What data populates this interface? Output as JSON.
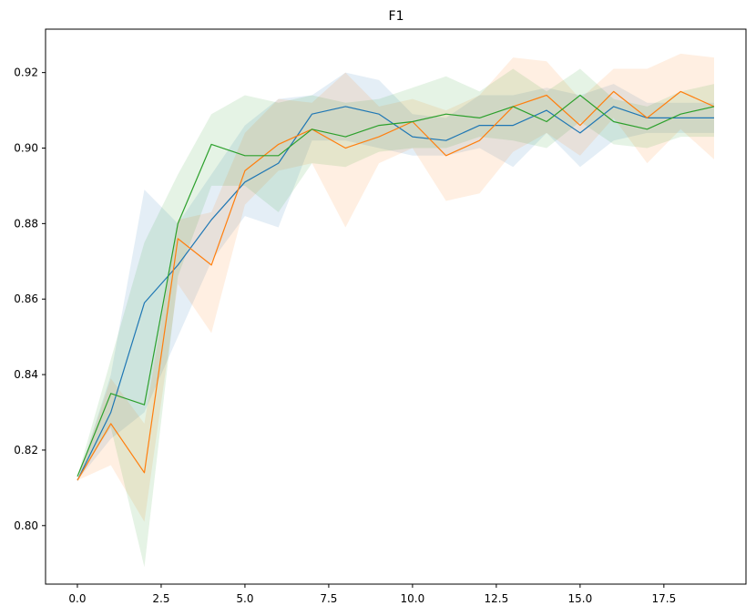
{
  "chart_data": {
    "type": "line",
    "title": "F1",
    "xlabel": "",
    "ylabel": "",
    "xlim": [
      -0.95,
      19.95
    ],
    "ylim": [
      0.7845,
      0.9315
    ],
    "grid": false,
    "legend": "none",
    "xticks": [
      0.0,
      2.5,
      5.0,
      7.5,
      10.0,
      12.5,
      15.0,
      17.5
    ],
    "xtick_labels": [
      "0.0",
      "2.5",
      "5.0",
      "7.5",
      "10.0",
      "12.5",
      "15.0",
      "17.5"
    ],
    "yticks": [
      0.8,
      0.82,
      0.84,
      0.86,
      0.88,
      0.9,
      0.92
    ],
    "ytick_labels": [
      "0.80",
      "0.82",
      "0.84",
      "0.86",
      "0.88",
      "0.90",
      "0.92"
    ],
    "x": [
      0,
      1,
      2,
      3,
      4,
      5,
      6,
      7,
      8,
      9,
      10,
      11,
      12,
      13,
      14,
      15,
      16,
      17,
      18,
      19
    ],
    "series": [
      {
        "color": "#1f77b4",
        "values": [
          0.812,
          0.83,
          0.859,
          0.869,
          0.881,
          0.891,
          0.896,
          0.909,
          0.911,
          0.909,
          0.903,
          0.902,
          0.906,
          0.906,
          0.91,
          0.904,
          0.911,
          0.908,
          0.908,
          0.908
        ],
        "lower": [
          0.812,
          0.823,
          0.83,
          0.85,
          0.87,
          0.882,
          0.879,
          0.902,
          0.902,
          0.9,
          0.898,
          0.898,
          0.9,
          0.895,
          0.904,
          0.895,
          0.902,
          0.904,
          0.904,
          0.904
        ],
        "upper": [
          0.812,
          0.84,
          0.889,
          0.88,
          0.893,
          0.906,
          0.913,
          0.914,
          0.92,
          0.918,
          0.909,
          0.908,
          0.914,
          0.914,
          0.916,
          0.914,
          0.917,
          0.912,
          0.912,
          0.912
        ]
      },
      {
        "color": "#ff7f0e",
        "values": [
          0.812,
          0.827,
          0.814,
          0.876,
          0.869,
          0.894,
          0.901,
          0.905,
          0.9,
          0.903,
          0.907,
          0.898,
          0.902,
          0.911,
          0.914,
          0.906,
          0.915,
          0.908,
          0.915,
          0.911
        ],
        "lower": [
          0.812,
          0.816,
          0.801,
          0.864,
          0.851,
          0.885,
          0.894,
          0.896,
          0.879,
          0.896,
          0.9,
          0.886,
          0.888,
          0.899,
          0.904,
          0.898,
          0.908,
          0.896,
          0.905,
          0.897
        ],
        "upper": [
          0.812,
          0.839,
          0.827,
          0.881,
          0.883,
          0.904,
          0.913,
          0.912,
          0.92,
          0.911,
          0.913,
          0.91,
          0.914,
          0.924,
          0.923,
          0.913,
          0.921,
          0.921,
          0.925,
          0.924
        ]
      },
      {
        "color": "#2ca02c",
        "values": [
          0.813,
          0.835,
          0.832,
          0.88,
          0.901,
          0.898,
          0.898,
          0.905,
          0.903,
          0.906,
          0.907,
          0.909,
          0.908,
          0.911,
          0.907,
          0.914,
          0.907,
          0.905,
          0.909,
          0.911
        ],
        "lower": [
          0.813,
          0.826,
          0.789,
          0.866,
          0.89,
          0.89,
          0.883,
          0.896,
          0.895,
          0.899,
          0.9,
          0.9,
          0.903,
          0.902,
          0.9,
          0.907,
          0.901,
          0.9,
          0.903,
          0.903
        ],
        "upper": [
          0.813,
          0.844,
          0.875,
          0.893,
          0.909,
          0.914,
          0.912,
          0.914,
          0.912,
          0.913,
          0.916,
          0.919,
          0.915,
          0.921,
          0.915,
          0.921,
          0.913,
          0.911,
          0.915,
          0.917
        ]
      }
    ]
  }
}
